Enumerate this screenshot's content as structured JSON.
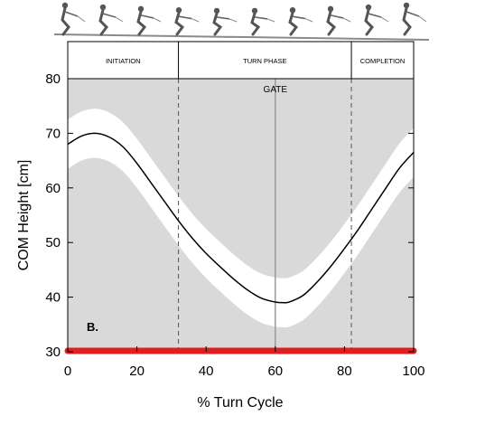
{
  "chart_data": {
    "type": "line",
    "xlabel": "% Turn Cycle",
    "ylabel": "COM Height [cm]",
    "xlim": [
      0,
      100
    ],
    "ylim": [
      30,
      80
    ],
    "xticks": [
      0,
      20,
      40,
      60,
      80,
      100
    ],
    "yticks": [
      30,
      40,
      50,
      60,
      70,
      80
    ],
    "panel_label": "B.",
    "gate_label": "GATE",
    "gate_x": 60,
    "phases": [
      {
        "label": "INITIATION",
        "start": 0,
        "end": 32
      },
      {
        "label": "TURN PHASE",
        "start": 32,
        "end": 82
      },
      {
        "label": "COMPLETION",
        "start": 82,
        "end": 100
      }
    ],
    "grid": false,
    "background": "#d9d9d9",
    "band_color": "#ffffff",
    "line_color": "#000000",
    "baseline_color": "#e02020",
    "series": [
      {
        "x": [
          0,
          4,
          8,
          12,
          16,
          20,
          24,
          28,
          32,
          36,
          40,
          44,
          48,
          52,
          56,
          60,
          62,
          64,
          68,
          72,
          76,
          80,
          84,
          88,
          92,
          96,
          100
        ],
        "mean": [
          68,
          69.5,
          70,
          69.3,
          67.5,
          64.5,
          61,
          57.5,
          54,
          50.8,
          48,
          45.6,
          43.3,
          41.3,
          39.8,
          39.1,
          39.0,
          39.1,
          40.3,
          42.7,
          45.6,
          48.9,
          52.4,
          56.2,
          60.0,
          63.7,
          66.5
        ],
        "band": 4.5
      }
    ]
  },
  "skier_strip": {
    "frames": 10
  }
}
